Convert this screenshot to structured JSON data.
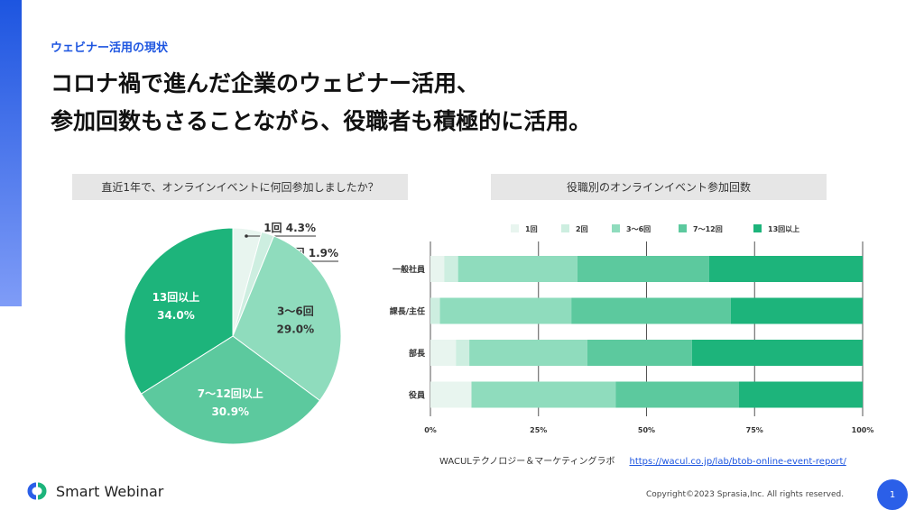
{
  "header": {
    "subtitle": "ウェビナー活用の現状",
    "title_line1": "コロナ禍で進んだ企業のウェビナー活用、",
    "title_line2": "参加回数もさることながら、役職者も積極的に活用。"
  },
  "colors": {
    "accent": "#1d55e0",
    "c1": "#e8f5ef",
    "c2": "#cdeee0",
    "c3": "#8fdcbd",
    "c4": "#5cc99e",
    "c5": "#1db47b"
  },
  "chart_data": [
    {
      "type": "pie",
      "title": "直近1年で、オンラインイベントに何回参加しましたか？",
      "slices": [
        {
          "label": "1回",
          "value": 4.3,
          "text": "4.3%"
        },
        {
          "label": "2回",
          "value": 1.9,
          "text": "1.9%"
        },
        {
          "label": "3〜6回",
          "value": 29.0,
          "text": "29.0%"
        },
        {
          "label": "7〜12回以上",
          "value": 30.9,
          "text": "30.9%"
        },
        {
          "label": "13回以上",
          "value": 34.0,
          "text": "34.0%"
        }
      ]
    },
    {
      "type": "bar",
      "orientation": "horizontal-stacked",
      "title": "役職別のオンラインイベント参加回数",
      "categories": [
        "一般社員",
        "課長/主任",
        "部長",
        "役員"
      ],
      "series": [
        {
          "name": "1回",
          "values": [
            3.2,
            0,
            5.9,
            9.5
          ]
        },
        {
          "name": "2回",
          "values": [
            3.2,
            2.2,
            3.1,
            0
          ]
        },
        {
          "name": "3〜6回",
          "values": [
            27.6,
            30.4,
            27.3,
            33.4
          ]
        },
        {
          "name": "7〜12回",
          "values": [
            30.5,
            36.9,
            24.2,
            28.5
          ]
        },
        {
          "name": "13回以上",
          "values": [
            35.5,
            30.5,
            39.5,
            28.6
          ]
        }
      ],
      "xticks": [
        "0%",
        "25%",
        "50%",
        "75%",
        "100%"
      ],
      "xlim": [
        0,
        100
      ],
      "legend": "top",
      "grid": true
    }
  ],
  "source": {
    "label": "WACULテクノロジー＆マーケティングラボ",
    "url": "https://wacul.co.jp/lab/btob-online-event-report/"
  },
  "footer": {
    "logo": "Smart Webinar",
    "copyright": "Copyright©2023 Sprasia,Inc. All rights reserved.",
    "page": "1"
  }
}
